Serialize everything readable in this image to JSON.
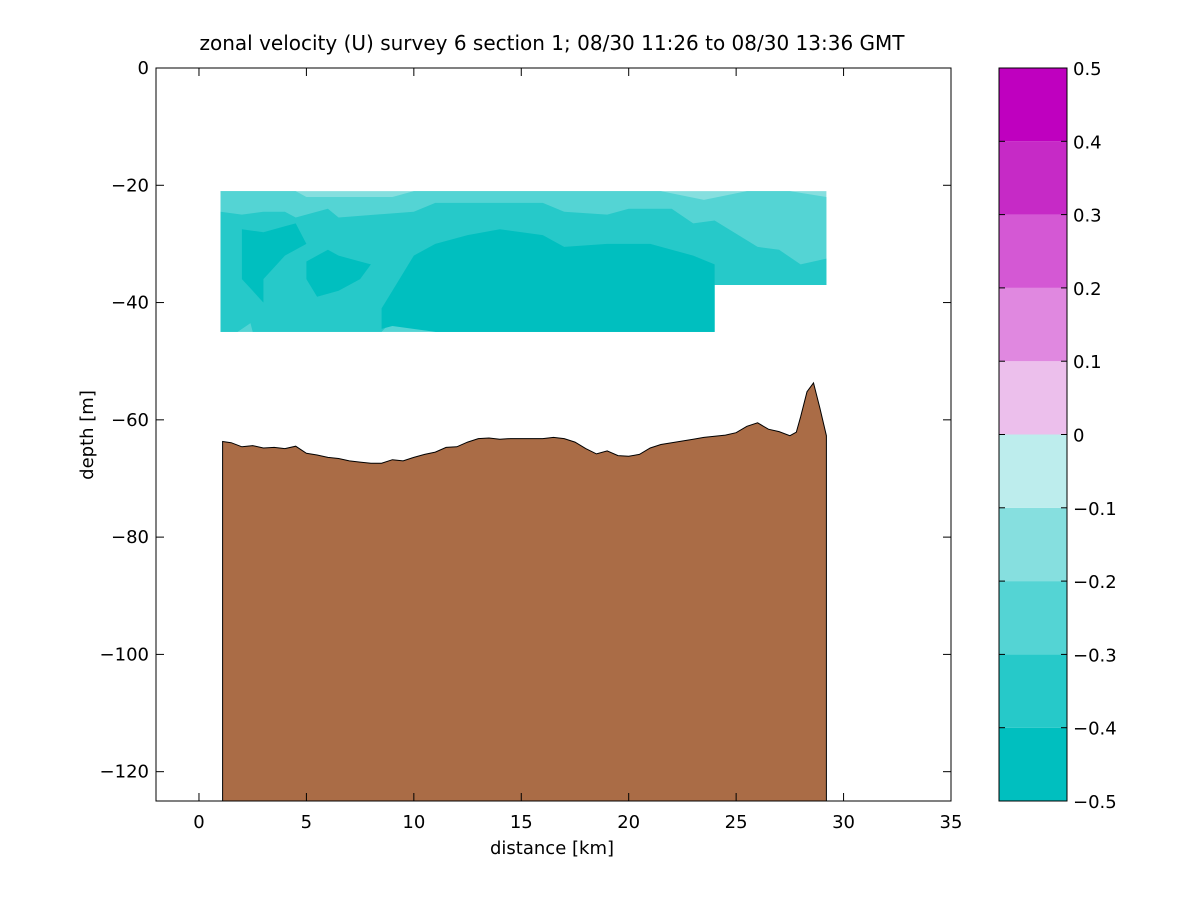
{
  "chart_data": {
    "type": "contour",
    "title": "zonal velocity (U) survey 6 section 1; 08/30 11:26 to 08/30 13:36 GMT",
    "xlabel": "distance [km]",
    "ylabel": "depth [m]",
    "xlim": [
      -2,
      35
    ],
    "ylim": [
      -125,
      0
    ],
    "xticks": [
      0,
      5,
      10,
      15,
      20,
      25,
      30,
      35
    ],
    "yticks": [
      -120,
      -100,
      -80,
      -60,
      -40,
      -20,
      0
    ],
    "grid": false,
    "colorbar": {
      "levels": [
        -0.5,
        -0.4,
        -0.3,
        -0.2,
        -0.1,
        0,
        0.1,
        0.2,
        0.3,
        0.4,
        0.5
      ],
      "tick_labels": [
        "−0.5",
        "−0.4",
        "−0.3",
        "−0.2",
        "−0.1",
        "0",
        "0.1",
        "0.2",
        "0.3",
        "0.4",
        "0.5"
      ],
      "colors": [
        "#00bfbf",
        "#26c9c9",
        "#54d4d4",
        "#86dfdf",
        "#bdeded",
        "#ecbfec",
        "#e088e0",
        "#d458d4",
        "#c62ac6",
        "#bf00bf"
      ]
    },
    "bathymetry": {
      "color": "#aa6c46",
      "x": [
        1.1,
        1.5,
        2,
        2.5,
        3,
        3.5,
        4,
        4.5,
        5,
        5.5,
        6,
        6.5,
        7,
        7.5,
        8,
        8.5,
        9,
        9.5,
        10,
        10.5,
        11,
        11.5,
        12,
        12.5,
        13,
        13.5,
        14,
        14.5,
        15,
        15.5,
        16,
        16.5,
        17,
        17.5,
        18,
        18.5,
        19,
        19.5,
        20,
        20.5,
        21,
        21.5,
        22,
        22.5,
        23,
        23.5,
        24,
        24.5,
        25,
        25.5,
        26,
        26.5,
        27,
        27.5,
        27.8,
        28,
        28.3,
        28.6,
        28.9,
        29.2
      ],
      "depth": [
        -63.7,
        -63.9,
        -64.6,
        -64.4,
        -64.8,
        -64.7,
        -64.9,
        -64.5,
        -65.7,
        -66.0,
        -66.4,
        -66.6,
        -67.0,
        -67.2,
        -67.4,
        -67.4,
        -66.8,
        -67.0,
        -66.4,
        -65.9,
        -65.5,
        -64.7,
        -64.6,
        -63.8,
        -63.2,
        -63.1,
        -63.3,
        -63.2,
        -63.2,
        -63.2,
        -63.2,
        -63.0,
        -63.2,
        -63.8,
        -64.9,
        -65.8,
        -65.3,
        -66.1,
        -66.2,
        -65.9,
        -64.8,
        -64.2,
        -63.9,
        -63.6,
        -63.3,
        -63.0,
        -62.8,
        -62.6,
        -62.2,
        -61.1,
        -60.5,
        -61.6,
        -62.0,
        -62.7,
        -62.1,
        -59.5,
        -55.2,
        -53.7,
        -58.0,
        -62.7
      ]
    },
    "velocity_field": {
      "x_range": [
        1,
        29.2
      ],
      "depth_range": [
        -21,
        -45
      ],
      "data_gap": {
        "x_from": 24,
        "depth_from": -37
      },
      "regions": [
        {
          "level": "-0.2 to -0.1",
          "boundary": [
            [
              1,
              -21
            ],
            [
              29.2,
              -21
            ],
            [
              29.2,
              -37
            ],
            [
              24,
              -37
            ],
            [
              24,
              -45
            ],
            [
              1,
              -45
            ]
          ]
        },
        {
          "level": "-0.3 to -0.2",
          "boundary": [
            [
              1,
              -21
            ],
            [
              4.5,
              -21
            ],
            [
              5,
              -22
            ],
            [
              9,
              -22
            ],
            [
              10,
              -21
            ],
            [
              21.5,
              -21
            ],
            [
              23.5,
              -22.5
            ],
            [
              25.5,
              -21
            ],
            [
              27.5,
              -21
            ],
            [
              29.2,
              -22
            ],
            [
              29.2,
              -37
            ],
            [
              24,
              -37
            ],
            [
              24,
              -45
            ],
            [
              1,
              -45
            ]
          ]
        },
        {
          "level": "-0.4 to -0.3",
          "boundary": [
            [
              1,
              -24.5
            ],
            [
              2,
              -25
            ],
            [
              3,
              -24.5
            ],
            [
              4,
              -24.5
            ],
            [
              4.5,
              -25.5
            ],
            [
              6,
              -24
            ],
            [
              6.5,
              -25.5
            ],
            [
              10,
              -24.5
            ],
            [
              11,
              -23
            ],
            [
              16,
              -23
            ],
            [
              17,
              -24.5
            ],
            [
              19,
              -25
            ],
            [
              20,
              -24
            ],
            [
              22,
              -24
            ],
            [
              23,
              -26.5
            ],
            [
              24,
              -26
            ],
            [
              26,
              -30.5
            ],
            [
              27,
              -31
            ],
            [
              28,
              -33.5
            ],
            [
              29.2,
              -32.5
            ],
            [
              29.2,
              -37
            ],
            [
              24,
              -37
            ],
            [
              24,
              -45
            ],
            [
              11,
              -45
            ],
            [
              10.5,
              -43
            ],
            [
              9,
              -43
            ],
            [
              8.5,
              -45
            ],
            [
              2.5,
              -45
            ],
            [
              2.4,
              -43.5
            ],
            [
              1.8,
              -45
            ],
            [
              1,
              -45
            ]
          ]
        },
        {
          "level": "-0.5 to -0.4",
          "boundary": [
            [
              2,
              -27.5
            ],
            [
              3,
              -28
            ],
            [
              4,
              -27
            ],
            [
              4.5,
              -26.5
            ],
            [
              5,
              -30
            ],
            [
              4,
              -32
            ],
            [
              3.5,
              -34
            ],
            [
              3,
              -36
            ],
            [
              3,
              -40
            ],
            [
              2.5,
              -38
            ],
            [
              2,
              -36
            ],
            [
              2,
              -32
            ]
          ]
        },
        {
          "level": "-0.5 to -0.4",
          "boundary": [
            [
              5,
              -33
            ],
            [
              5.5,
              -32
            ],
            [
              6,
              -31
            ],
            [
              6.5,
              -32
            ],
            [
              7.5,
              -33
            ],
            [
              8,
              -33.5
            ],
            [
              7.5,
              -36
            ],
            [
              6.5,
              -38
            ],
            [
              5.5,
              -39
            ],
            [
              5,
              -36
            ]
          ]
        },
        {
          "level": "-0.5 to -0.4",
          "boundary": [
            [
              10,
              -32
            ],
            [
              11,
              -30
            ],
            [
              12.5,
              -28.5
            ],
            [
              14,
              -27.5
            ],
            [
              16,
              -28.5
            ],
            [
              17,
              -30.5
            ],
            [
              19,
              -30
            ],
            [
              20,
              -30
            ],
            [
              21,
              -30
            ],
            [
              22,
              -31
            ],
            [
              23,
              -32
            ],
            [
              24,
              -33.5
            ],
            [
              24,
              -45
            ],
            [
              11,
              -45
            ],
            [
              9,
              -44
            ],
            [
              8.5,
              -44.5
            ],
            [
              8.5,
              -41
            ],
            [
              9,
              -38
            ]
          ]
        }
      ]
    }
  }
}
